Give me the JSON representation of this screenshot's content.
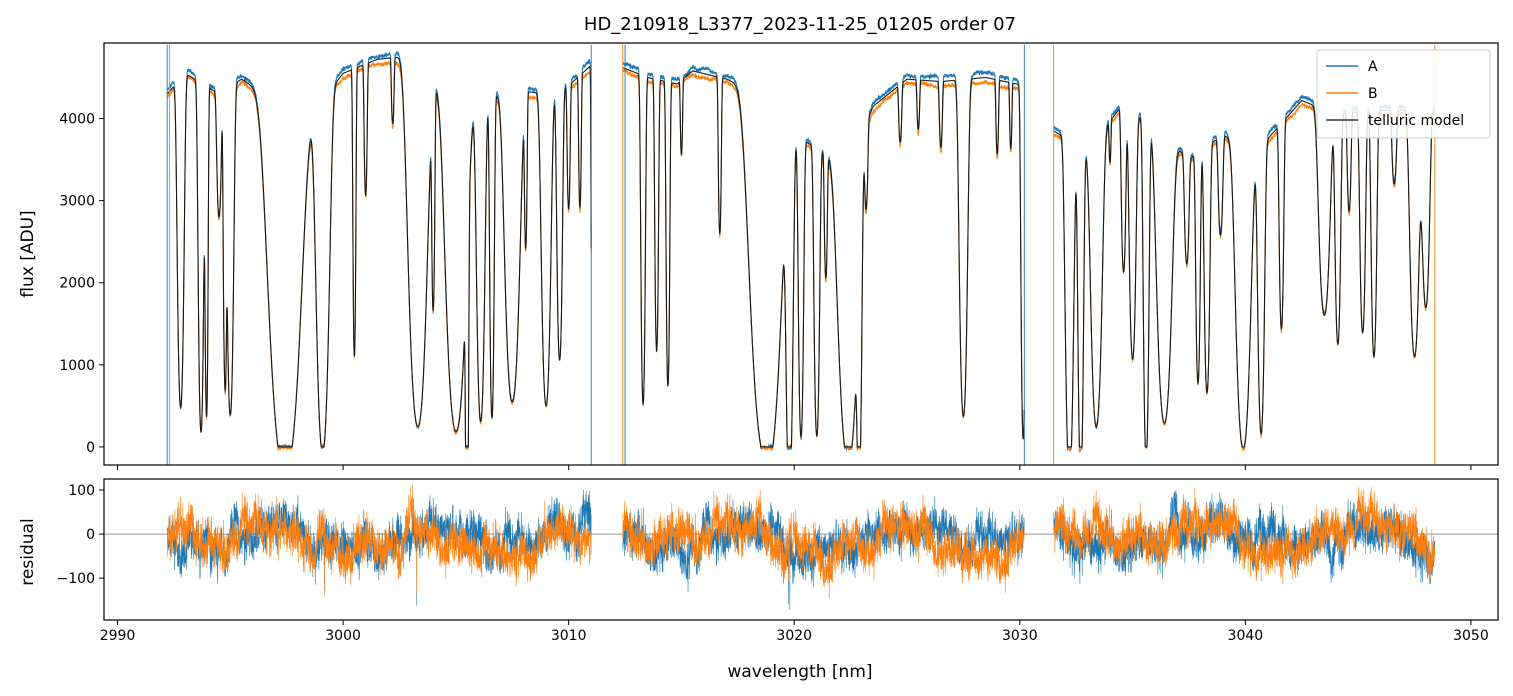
{
  "title": "HD_210918_L3377_2023-11-25_01205  order 07",
  "chart_data": [
    {
      "type": "line",
      "panel": "flux",
      "xlabel": "",
      "ylabel": "flux [ADU]",
      "xlim": [
        2989.4,
        3051.2
      ],
      "ylim": [
        -220,
        4920
      ],
      "xticks": [
        2990,
        3000,
        3010,
        3020,
        3030,
        3040,
        3050
      ],
      "yticks": [
        0,
        1000,
        2000,
        3000,
        4000
      ],
      "legend_position": "top-right",
      "segments": [
        [
          2992.2,
          3011.0
        ],
        [
          3012.4,
          3030.2
        ],
        [
          3031.5,
          3048.4
        ]
      ],
      "spikes": [
        {
          "x": 2992.2,
          "series": "A",
          "y": 4900
        },
        {
          "x": 2992.3,
          "series": "B",
          "y": 4900
        },
        {
          "x": 3011.0,
          "series": "A",
          "y": 4900
        },
        {
          "x": 3012.4,
          "series": "B",
          "y": 4900
        },
        {
          "x": 3012.5,
          "series": "A",
          "y": 4900
        },
        {
          "x": 3030.2,
          "series": "A",
          "y": 4900
        },
        {
          "x": 3031.5,
          "series": "B",
          "y": 4900
        },
        {
          "x": 3048.4,
          "series": "B",
          "y": 4900
        }
      ],
      "continuum": [
        [
          2992.2,
          4300
        ],
        [
          2993.0,
          4550
        ],
        [
          2994.5,
          4300
        ],
        [
          2995.5,
          4480
        ],
        [
          2996.5,
          4300
        ],
        [
          2998.0,
          4000
        ],
        [
          2999.0,
          4200
        ],
        [
          3000.0,
          4550
        ],
        [
          3001.5,
          4720
        ],
        [
          3002.5,
          4750
        ],
        [
          3003.5,
          4500
        ],
        [
          3004.5,
          4330
        ],
        [
          3006.0,
          4200
        ],
        [
          3007.5,
          4350
        ],
        [
          3009.0,
          4300
        ],
        [
          3010.0,
          4400
        ],
        [
          3011.0,
          4650
        ],
        [
          3012.4,
          4620
        ],
        [
          3013.5,
          4500
        ],
        [
          3014.8,
          4420
        ],
        [
          3015.5,
          4580
        ],
        [
          3017.0,
          4480
        ],
        [
          3018.5,
          4300
        ],
        [
          3019.3,
          3750
        ],
        [
          3020.5,
          3720
        ],
        [
          3021.5,
          3550
        ],
        [
          3022.5,
          3500
        ],
        [
          3023.5,
          4150
        ],
        [
          3025.0,
          4480
        ],
        [
          3026.5,
          4450
        ],
        [
          3028.5,
          4500
        ],
        [
          3030.2,
          4400
        ],
        [
          3031.5,
          3850
        ],
        [
          3033.0,
          3600
        ],
        [
          3034.5,
          4150
        ],
        [
          3036.0,
          3900
        ],
        [
          3037.5,
          3500
        ],
        [
          3039.0,
          3800
        ],
        [
          3040.5,
          3600
        ],
        [
          3042.5,
          4220
        ],
        [
          3044.0,
          4050
        ],
        [
          3045.5,
          4100
        ],
        [
          3047.0,
          4100
        ],
        [
          3048.4,
          4100
        ]
      ],
      "absorption_lines": [
        [
          2992.8,
          4000,
          0.18
        ],
        [
          2993.7,
          4250,
          0.15
        ],
        [
          2993.95,
          4000,
          0.08
        ],
        [
          2994.5,
          1500,
          0.12
        ],
        [
          2994.75,
          3300,
          0.08
        ],
        [
          2995.0,
          4000,
          0.18
        ],
        [
          2997.4,
          4450,
          0.85
        ],
        [
          2999.1,
          4300,
          0.35
        ],
        [
          3000.5,
          3500,
          0.08
        ],
        [
          3001.0,
          1600,
          0.08
        ],
        [
          3002.2,
          800,
          0.07
        ],
        [
          3003.3,
          4300,
          0.5
        ],
        [
          3004.0,
          2500,
          0.08
        ],
        [
          3005.0,
          4100,
          0.55
        ],
        [
          3005.5,
          3800,
          0.08
        ],
        [
          3006.1,
          3900,
          0.22
        ],
        [
          3006.6,
          3900,
          0.12
        ],
        [
          3007.5,
          3800,
          0.4
        ],
        [
          3008.1,
          1800,
          0.07
        ],
        [
          3009.0,
          3800,
          0.25
        ],
        [
          3009.6,
          3300,
          0.15
        ],
        [
          3010.0,
          1500,
          0.08
        ],
        [
          3010.5,
          1600,
          0.07
        ],
        [
          3011.05,
          4300,
          0.06
        ],
        [
          3013.3,
          4000,
          0.12
        ],
        [
          3013.9,
          3300,
          0.1
        ],
        [
          3014.4,
          3700,
          0.1
        ],
        [
          3015.0,
          900,
          0.06
        ],
        [
          3016.7,
          1900,
          0.08
        ],
        [
          3018.7,
          4400,
          0.8
        ],
        [
          3019.8,
          4000,
          0.18
        ],
        [
          3020.3,
          3600,
          0.14
        ],
        [
          3021.0,
          3500,
          0.15
        ],
        [
          3021.4,
          1500,
          0.08
        ],
        [
          3022.4,
          3700,
          0.55
        ],
        [
          3022.9,
          2500,
          0.12
        ],
        [
          3023.2,
          900,
          0.08
        ],
        [
          3024.7,
          700,
          0.08
        ],
        [
          3025.5,
          600,
          0.07
        ],
        [
          3026.5,
          800,
          0.08
        ],
        [
          3027.5,
          4100,
          0.22
        ],
        [
          3029.0,
          900,
          0.07
        ],
        [
          3029.6,
          800,
          0.06
        ],
        [
          3030.15,
          4300,
          0.12
        ],
        [
          3032.2,
          4100,
          0.22
        ],
        [
          3032.7,
          4000,
          0.15
        ],
        [
          3033.4,
          3500,
          0.3
        ],
        [
          3034.0,
          500,
          0.05
        ],
        [
          3034.6,
          2000,
          0.12
        ],
        [
          3035.0,
          3000,
          0.18
        ],
        [
          3035.6,
          4100,
          0.15
        ],
        [
          3036.4,
          3500,
          0.4
        ],
        [
          3037.4,
          1300,
          0.12
        ],
        [
          3037.9,
          2800,
          0.12
        ],
        [
          3038.3,
          3000,
          0.15
        ],
        [
          3038.9,
          1200,
          0.12
        ],
        [
          3039.9,
          3700,
          0.4
        ],
        [
          3040.7,
          3500,
          0.18
        ],
        [
          3041.6,
          2500,
          0.12
        ],
        [
          3043.5,
          2500,
          0.3
        ],
        [
          3044.1,
          2800,
          0.15
        ],
        [
          3044.6,
          1200,
          0.1
        ],
        [
          3045.2,
          2700,
          0.15
        ],
        [
          3045.7,
          3000,
          0.15
        ],
        [
          3046.6,
          900,
          0.12
        ],
        [
          3047.5,
          3000,
          0.25
        ],
        [
          3048.0,
          2400,
          0.2
        ]
      ],
      "series": [
        {
          "name": "A",
          "color": "#1f77b4",
          "gain": 1.012
        },
        {
          "name": "B",
          "color": "#ff7f0e",
          "gain": 0.99
        },
        {
          "name": "telluric model",
          "color": "#333333"
        }
      ]
    },
    {
      "type": "line",
      "panel": "residual",
      "xlabel": "wavelength [nm]",
      "ylabel": "residual",
      "xlim": [
        2989.4,
        3051.2
      ],
      "ylim": [
        -195,
        125
      ],
      "xticks": [
        2990,
        3000,
        3010,
        3020,
        3030,
        3040,
        3050
      ],
      "yticks": [
        -100,
        0,
        100
      ],
      "zero_line": 0,
      "series": [
        {
          "name": "A",
          "color": "#1f77b4"
        },
        {
          "name": "B",
          "color": "#ff7f0e"
        }
      ]
    }
  ]
}
